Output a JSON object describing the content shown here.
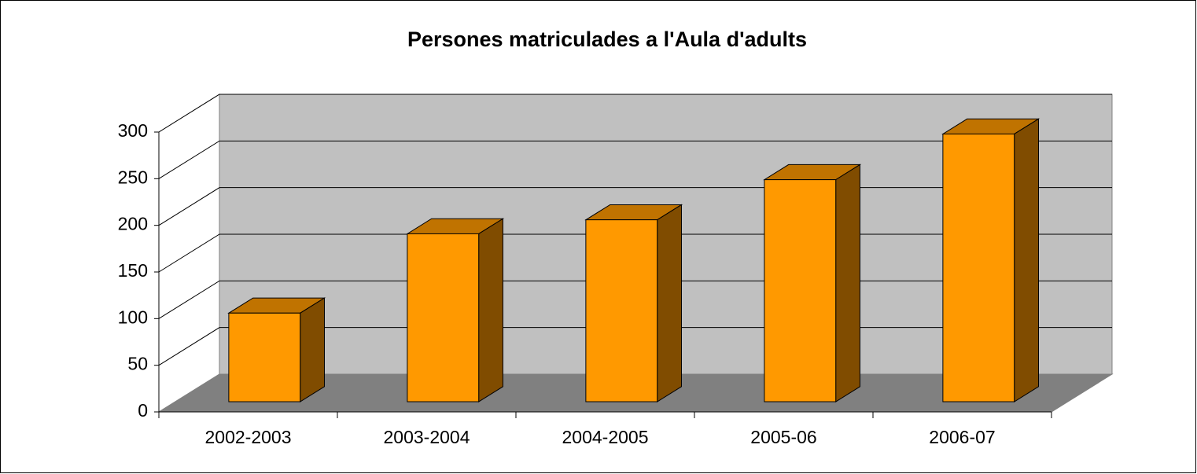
{
  "chart_data": {
    "type": "bar",
    "title": "Persones matriculades a l'Aula d'adults",
    "categories": [
      "2002-2003",
      "2003-2004",
      "2004-2005",
      "2005-06",
      "2006-07"
    ],
    "values": [
      95,
      180,
      195,
      238,
      287
    ],
    "color": "#ff9900",
    "ylim": [
      0,
      300
    ],
    "yticks": [
      0,
      50,
      100,
      150,
      200,
      250,
      300
    ],
    "grid": true
  }
}
